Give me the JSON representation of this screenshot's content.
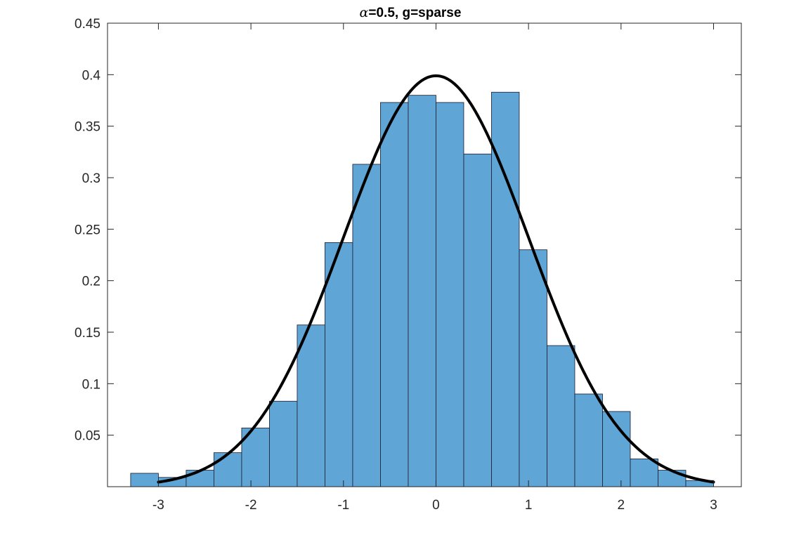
{
  "chart_data": {
    "type": "bar",
    "title_symbol": "α",
    "title_rest": "=0.5, g=sparse",
    "xlabel": "",
    "ylabel": "",
    "xlim": [
      -3.55,
      3.3
    ],
    "ylim": [
      0,
      0.45
    ],
    "x_ticks": [
      -3,
      -2,
      -1,
      0,
      1,
      2,
      3
    ],
    "x_tick_labels": [
      "-3",
      "-2",
      "-1",
      "0",
      "1",
      "2",
      "3"
    ],
    "y_ticks": [
      0.05,
      0.1,
      0.15,
      0.2,
      0.25,
      0.3,
      0.35,
      0.4,
      0.45
    ],
    "y_tick_labels": [
      "0.05",
      "0.1",
      "0.15",
      "0.2",
      "0.25",
      "0.3",
      "0.35",
      "0.4",
      "0.45"
    ],
    "grid": false,
    "histogram": {
      "bin_edges": [
        -3.3,
        -3.0,
        -2.7,
        -2.4,
        -2.1,
        -1.8,
        -1.5,
        -1.2,
        -0.9,
        -0.6,
        -0.3,
        0.0,
        0.3,
        0.6,
        0.9,
        1.2,
        1.5,
        1.8,
        2.1,
        2.4,
        2.7,
        3.0
      ],
      "values": [
        0.013,
        0.009,
        0.016,
        0.033,
        0.057,
        0.083,
        0.157,
        0.237,
        0.313,
        0.373,
        0.38,
        0.373,
        0.323,
        0.383,
        0.23,
        0.137,
        0.09,
        0.073,
        0.027,
        0.016,
        0.006
      ],
      "face_color": "#5fa5d6",
      "edge_color": "#1a1a2e"
    },
    "curve": {
      "type": "normal_pdf",
      "mean": 0,
      "std": 1,
      "x_range": [
        -3,
        3
      ],
      "color": "#000000"
    }
  }
}
